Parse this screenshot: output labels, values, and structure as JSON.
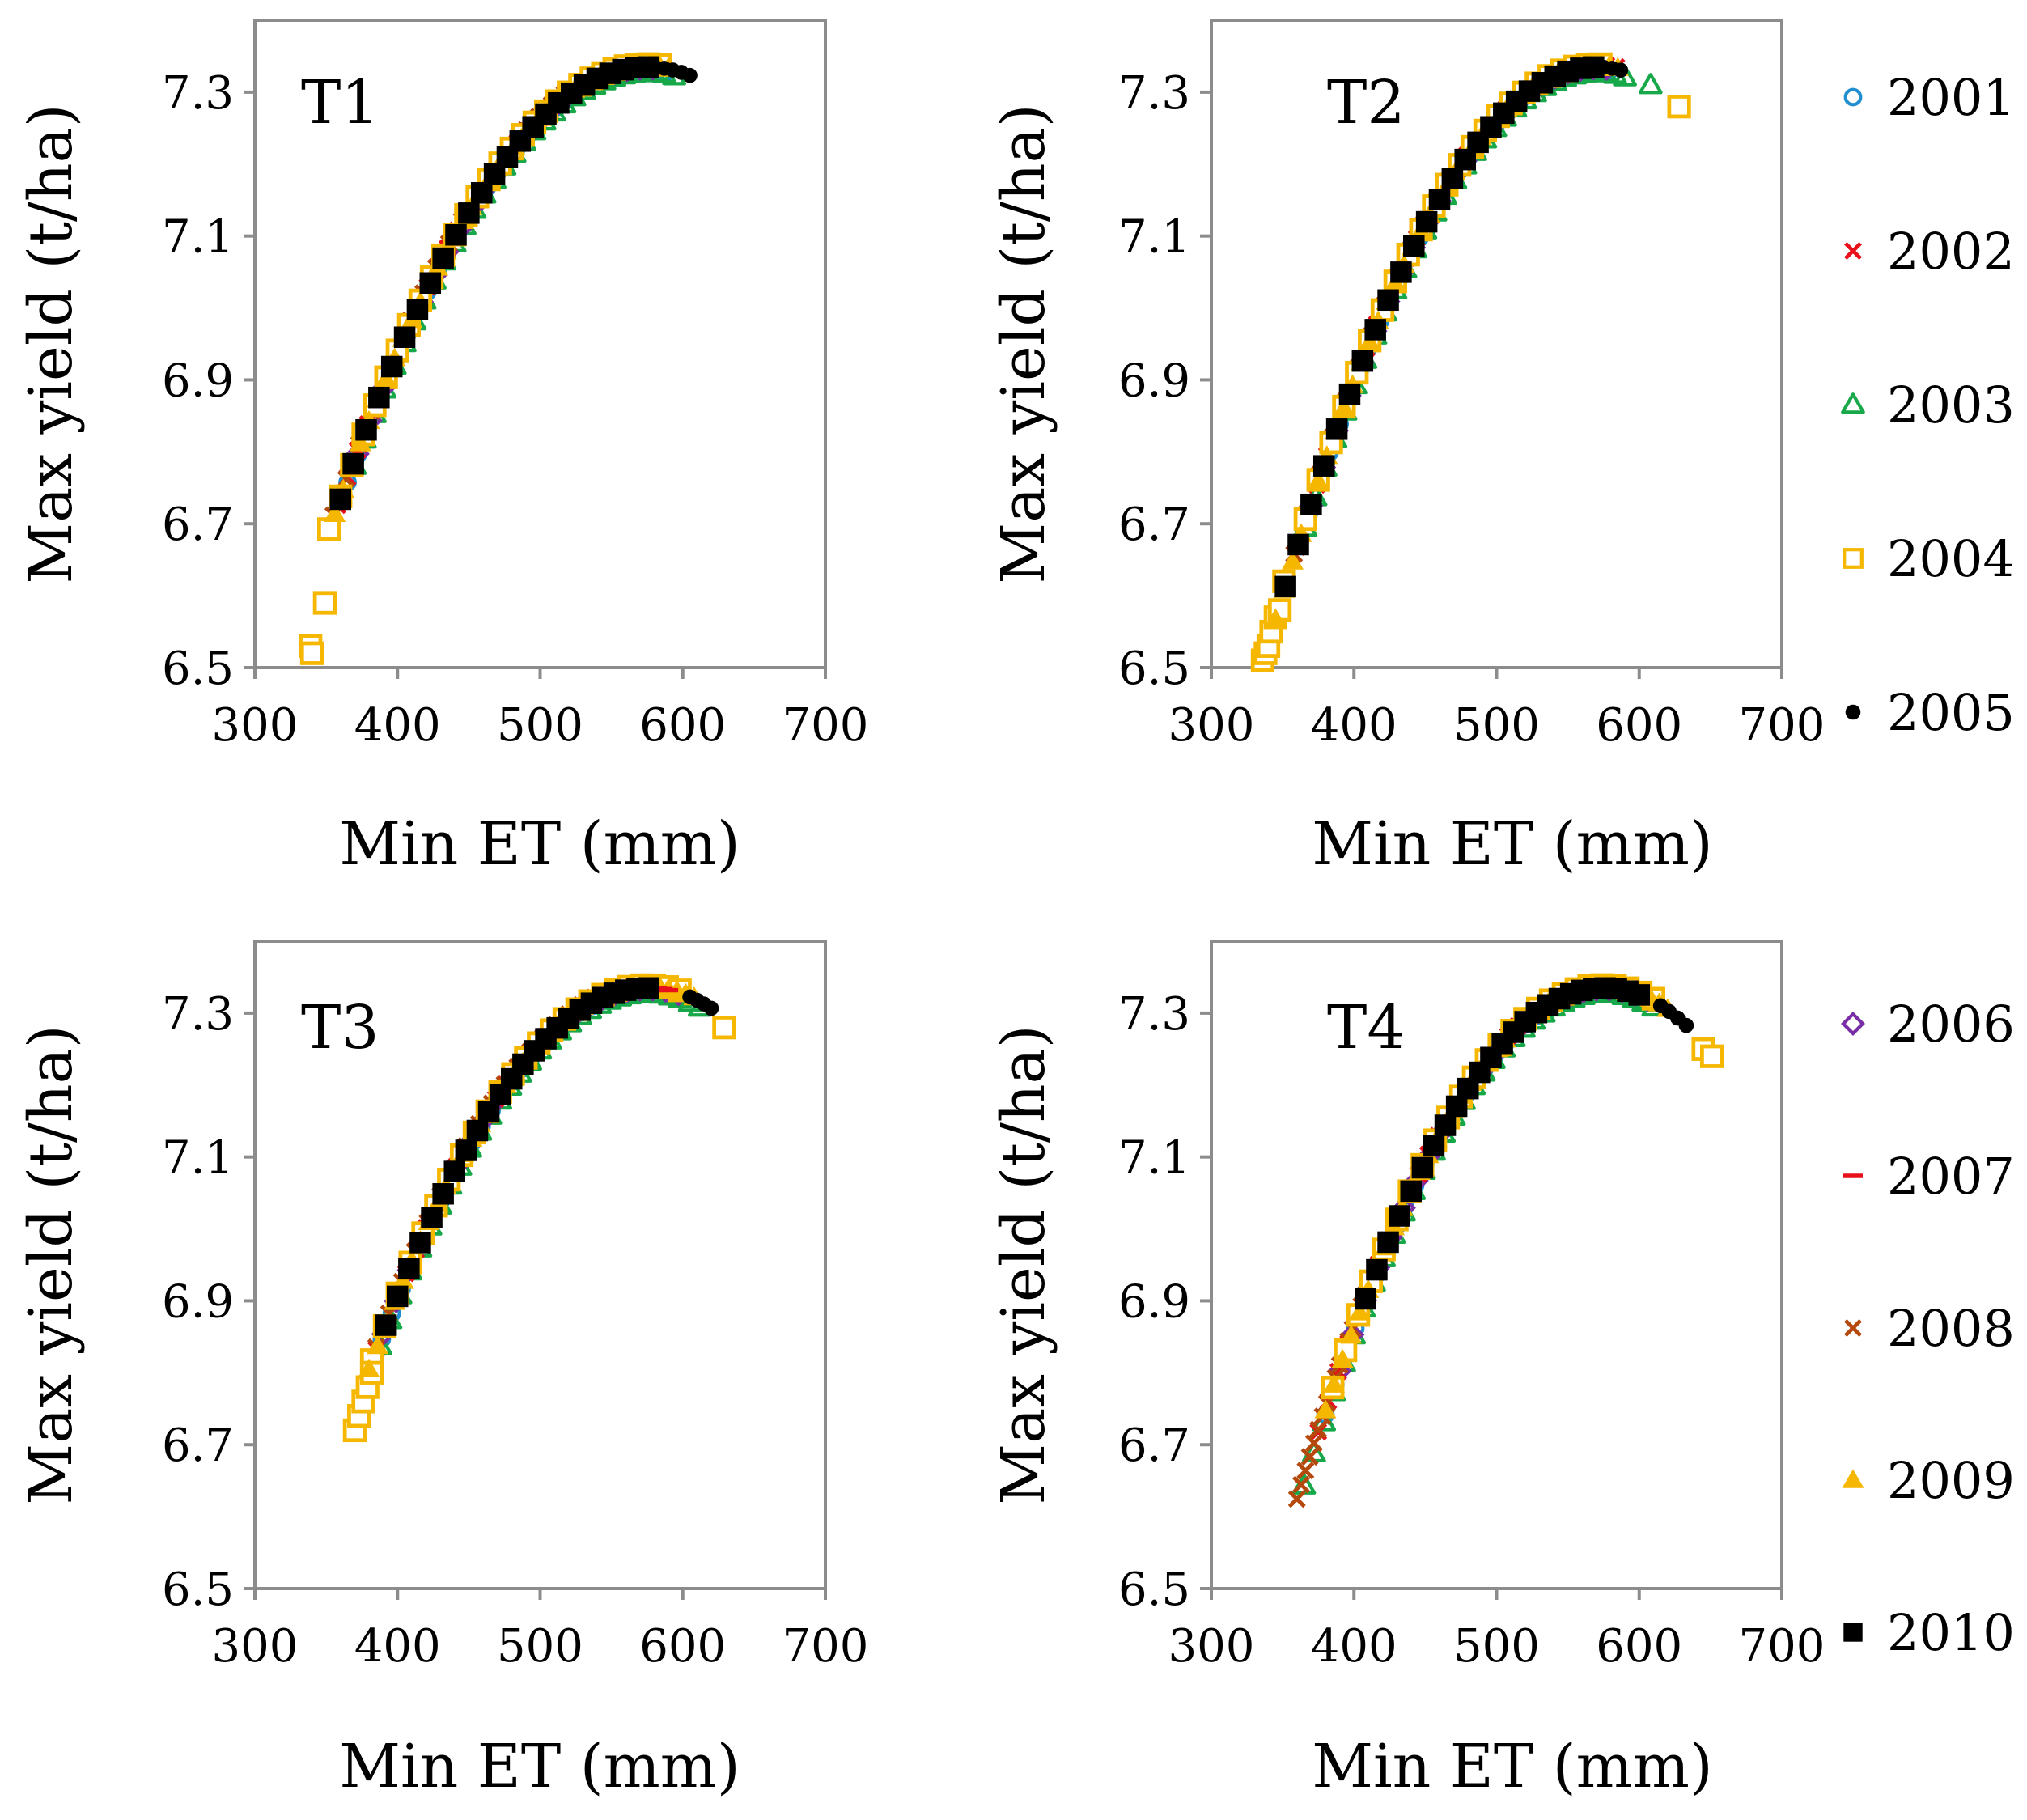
{
  "chart_data": [
    {
      "type": "scatter",
      "title": "T1",
      "xlabel": "Min ET (mm)",
      "ylabel": "Max yield (t/ha)",
      "xlim": [
        300,
        700
      ],
      "ylim": [
        6.5,
        7.4
      ],
      "xticks": [
        "300",
        "400",
        "500",
        "600",
        "700"
      ],
      "yticks": [
        "6.5",
        "6.7",
        "6.9",
        "7.1",
        "7.3"
      ],
      "curve": {
        "vertex_x": 575,
        "vertex_y": 7.335,
        "k": 1.3e-05
      },
      "series": [
        {
          "name": "2001",
          "x_range": [
            365,
            590
          ],
          "step": 7,
          "offset": -0.004
        },
        {
          "name": "2002",
          "x_range": [
            358,
            585
          ],
          "step": 7,
          "offset": 0.003
        },
        {
          "name": "2003",
          "x_range": [
            370,
            595
          ],
          "step": 7,
          "offset": -0.008
        },
        {
          "name": "2004",
          "x_range": [
            352,
            585
          ],
          "step": 8,
          "offset": 0.004,
          "extra": [
            [
              339,
              6.53
            ],
            [
              340,
              6.52
            ],
            [
              349,
              6.59
            ]
          ]
        },
        {
          "name": "2005",
          "x_range": [
            575,
            606
          ],
          "step": 6,
          "offset": 0.0
        },
        {
          "name": "2006",
          "x_range": [
            372,
            585
          ],
          "step": 9,
          "offset": -0.002
        },
        {
          "name": "2007",
          "x_range": [
            570,
            590
          ],
          "step": 4,
          "offset": 0.0
        },
        {
          "name": "2008",
          "x_range": [
            355,
            565
          ],
          "step": 9,
          "offset": 0.006
        },
        {
          "name": "2009",
          "x_range": [
            356,
            590
          ],
          "step": 6,
          "offset": 0.002
        },
        {
          "name": "2010",
          "x_range": [
            360,
            578
          ],
          "step": 9,
          "offset": 0.0
        }
      ]
    },
    {
      "type": "scatter",
      "title": "T2",
      "xlabel": "Min ET (mm)",
      "ylabel": "Max yield (t/ha)",
      "xlim": [
        300,
        700
      ],
      "ylim": [
        6.5,
        7.4
      ],
      "xticks": [
        "300",
        "400",
        "500",
        "600",
        "700"
      ],
      "yticks": [
        "6.5",
        "6.7",
        "6.9",
        "7.1",
        "7.3"
      ],
      "curve": {
        "vertex_x": 570,
        "vertex_y": 7.335,
        "k": 1.52e-05
      },
      "series": [
        {
          "name": "2001",
          "x_range": [
            362,
            585
          ],
          "step": 7,
          "offset": -0.004
        },
        {
          "name": "2002",
          "x_range": [
            360,
            585
          ],
          "step": 7,
          "offset": 0.003
        },
        {
          "name": "2003",
          "x_range": [
            366,
            590
          ],
          "step": 7,
          "offset": -0.008,
          "extra": [
            [
              608,
              7.31
            ]
          ]
        },
        {
          "name": "2004",
          "x_range": [
            366,
            580
          ],
          "step": 9,
          "offset": 0.004,
          "extra": [
            [
              628,
              7.28
            ],
            [
              336,
              6.51
            ],
            [
              338,
              6.52
            ],
            [
              340,
              6.53
            ],
            [
              342,
              6.55
            ],
            [
              345,
              6.57
            ],
            [
              348,
              6.58
            ],
            [
              351,
              6.62
            ]
          ]
        },
        {
          "name": "2005",
          "x_range": [
            575,
            592
          ],
          "step": 6,
          "offset": 0.0
        },
        {
          "name": "2006",
          "x_range": [
            370,
            580
          ],
          "step": 9,
          "offset": -0.002
        },
        {
          "name": "2007",
          "x_range": [
            568,
            585
          ],
          "step": 4,
          "offset": 0.0
        },
        {
          "name": "2008",
          "x_range": [
            358,
            575
          ],
          "step": 9,
          "offset": 0.006
        },
        {
          "name": "2009",
          "x_range": [
            345,
            585
          ],
          "step": 6,
          "offset": 0.002
        },
        {
          "name": "2010",
          "x_range": [
            352,
            575
          ],
          "step": 9,
          "offset": 0.0
        }
      ]
    },
    {
      "type": "scatter",
      "title": "T3",
      "xlabel": "Min ET (mm)",
      "ylabel": "Max yield (t/ha)",
      "xlim": [
        300,
        700
      ],
      "ylim": [
        6.5,
        7.4
      ],
      "xticks": [
        "300",
        "400",
        "500",
        "600",
        "700"
      ],
      "yticks": [
        "6.5",
        "6.7",
        "6.9",
        "7.1",
        "7.3"
      ],
      "curve": {
        "vertex_x": 575,
        "vertex_y": 7.335,
        "k": 1.4e-05
      },
      "series": [
        {
          "name": "2001",
          "x_range": [
            382,
            600
          ],
          "step": 7,
          "offset": -0.004
        },
        {
          "name": "2002",
          "x_range": [
            385,
            600
          ],
          "step": 7,
          "offset": 0.003
        },
        {
          "name": "2003",
          "x_range": [
            388,
            612
          ],
          "step": 7,
          "offset": -0.008
        },
        {
          "name": "2004",
          "x_range": [
            382,
            600
          ],
          "step": 9,
          "offset": 0.004,
          "extra": [
            [
              370,
              6.72
            ],
            [
              373,
              6.74
            ],
            [
              376,
              6.76
            ],
            [
              379,
              6.78
            ],
            [
              382,
              6.8
            ],
            [
              629,
              7.28
            ]
          ]
        },
        {
          "name": "2005",
          "x_range": [
            605,
            620
          ],
          "step": 5,
          "offset": 0.0
        },
        {
          "name": "2006",
          "x_range": [
            390,
            600
          ],
          "step": 9,
          "offset": -0.002
        },
        {
          "name": "2007",
          "x_range": [
            570,
            590
          ],
          "step": 4,
          "offset": 0.0
        },
        {
          "name": "2008",
          "x_range": [
            385,
            598
          ],
          "step": 9,
          "offset": 0.006
        },
        {
          "name": "2009",
          "x_range": [
            380,
            610
          ],
          "step": 6,
          "offset": 0.002
        },
        {
          "name": "2010",
          "x_range": [
            392,
            580
          ],
          "step": 8,
          "offset": 0.0
        }
      ]
    },
    {
      "type": "scatter",
      "title": "T4",
      "xlabel": "Min ET (mm)",
      "ylabel": "Max yield (t/ha)",
      "xlim": [
        300,
        700
      ],
      "ylim": [
        6.5,
        7.4
      ],
      "xticks": [
        "300",
        "400",
        "500",
        "600",
        "700"
      ],
      "yticks": [
        "6.5",
        "6.7",
        "6.9",
        "7.1",
        "7.3"
      ],
      "curve": {
        "vertex_x": 575,
        "vertex_y": 7.335,
        "k": 1.55e-05
      },
      "series": [
        {
          "name": "2001",
          "x_range": [
            380,
            610
          ],
          "step": 7,
          "offset": -0.004
        },
        {
          "name": "2002",
          "x_range": [
            375,
            610
          ],
          "step": 7,
          "offset": 0.003
        },
        {
          "name": "2003",
          "x_range": [
            365,
            615
          ],
          "step": 7,
          "offset": -0.008
        },
        {
          "name": "2004",
          "x_range": [
            385,
            615
          ],
          "step": 9,
          "offset": 0.004,
          "extra": [
            [
              645,
              7.25
            ],
            [
              651,
              7.24
            ]
          ]
        },
        {
          "name": "2005",
          "x_range": [
            615,
            633
          ],
          "step": 6,
          "offset": 0.0
        },
        {
          "name": "2006",
          "x_range": [
            390,
            610
          ],
          "step": 9,
          "offset": -0.002
        },
        {
          "name": "2007",
          "x_range": [
            575,
            600
          ],
          "step": 4,
          "offset": 0.0
        },
        {
          "name": "2008",
          "x_range": [
            360,
            410
          ],
          "step": 3,
          "offset": 0.006
        },
        {
          "name": "2009",
          "x_range": [
            380,
            625
          ],
          "step": 6,
          "offset": 0.002
        },
        {
          "name": "2010",
          "x_range": [
            408,
            600
          ],
          "step": 8,
          "offset": 0.0
        }
      ]
    }
  ],
  "legend": [
    {
      "year": "2001",
      "marker": "circle-open",
      "color": "#1f8fd0"
    },
    {
      "year": "2002",
      "marker": "x",
      "color": "#e8101a"
    },
    {
      "year": "2003",
      "marker": "triangle-open",
      "color": "#17a84a"
    },
    {
      "year": "2004",
      "marker": "square-open",
      "color": "#f6b700"
    },
    {
      "year": "2005",
      "marker": "circle-filled",
      "color": "#000000"
    },
    {
      "year": "2006",
      "marker": "diamond-open",
      "color": "#7a2ea6"
    },
    {
      "year": "2007",
      "marker": "dash",
      "color": "#e8101a"
    },
    {
      "year": "2008",
      "marker": "x",
      "color": "#b5490d"
    },
    {
      "year": "2009",
      "marker": "triangle-filled",
      "color": "#f6b700"
    },
    {
      "year": "2010",
      "marker": "square-filled",
      "color": "#000000"
    }
  ]
}
